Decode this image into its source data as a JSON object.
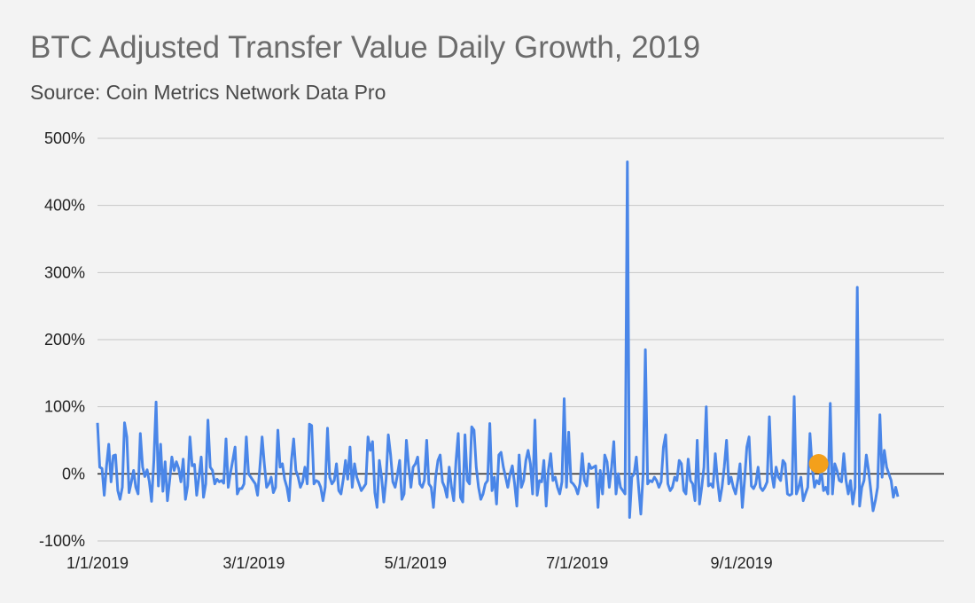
{
  "chart_data": {
    "type": "line",
    "title": "BTC Adjusted Transfer Value Daily Growth, 2019",
    "subtitle": "Source: Coin Metrics Network Data Pro",
    "xlabel": "",
    "ylabel": "",
    "x_start": "2019-01-01",
    "x_end": "2019-10-30",
    "ylim": [
      -100,
      500
    ],
    "y_ticks": [
      -100,
      0,
      100,
      200,
      300,
      400,
      500
    ],
    "y_tick_labels": [
      "-100%",
      "0%",
      "100%",
      "200%",
      "300%",
      "400%",
      "500%"
    ],
    "x_ticks": [
      "2019-01-01",
      "2019-03-01",
      "2019-05-01",
      "2019-07-01",
      "2019-09-01"
    ],
    "x_tick_labels": [
      "1/1/2019",
      "3/1/2019",
      "5/1/2019",
      "7/1/2019",
      "9/1/2019"
    ],
    "grid": true,
    "legend": "none",
    "colors": {
      "line": "#4a86e8",
      "marker": "#f4a01b",
      "grid": "#c6c6c6",
      "zero_line": "#222222"
    },
    "series": [
      {
        "values": [
          76,
          10,
          8,
          -32,
          12,
          44,
          -12,
          27,
          28,
          -25,
          -38,
          -20,
          76,
          55,
          -28,
          -12,
          5,
          -20,
          -30,
          60,
          10,
          -4,
          6,
          -12,
          -41,
          20,
          107,
          -18,
          44,
          -26,
          18,
          -40,
          -10,
          25,
          5,
          18,
          8,
          -12,
          22,
          -38,
          -18,
          55,
          12,
          14,
          -32,
          -4,
          25,
          -35,
          -15,
          80,
          10,
          5,
          -15,
          -8,
          -12,
          -10,
          -14,
          52,
          -20,
          2,
          20,
          40,
          -30,
          -22,
          -22,
          -15,
          55,
          0,
          -5,
          -10,
          -15,
          -32,
          8,
          55,
          15,
          -20,
          -15,
          -5,
          -28,
          -20,
          65,
          10,
          15,
          -8,
          -20,
          -40,
          20,
          52,
          5,
          -5,
          -20,
          -12,
          10,
          -15,
          74,
          72,
          -15,
          -10,
          -12,
          -20,
          -40,
          -20,
          68,
          -5,
          -15,
          -10,
          15,
          -25,
          -30,
          -8,
          20,
          -8,
          40,
          -20,
          15,
          -5,
          -15,
          -25,
          -20,
          -15,
          55,
          35,
          48,
          -28,
          -50,
          20,
          -5,
          -42,
          -8,
          58,
          28,
          -12,
          -20,
          -2,
          20,
          -38,
          -30,
          50,
          12,
          -20,
          10,
          15,
          25,
          -15,
          -20,
          -10,
          50,
          -15,
          -20,
          -50,
          -5,
          20,
          28,
          -12,
          -20,
          -35,
          10,
          -20,
          -40,
          18,
          60,
          -35,
          -42,
          58,
          -10,
          -15,
          70,
          65,
          10,
          -20,
          -38,
          -30,
          -15,
          -10,
          75,
          -25,
          -5,
          -45,
          28,
          32,
          10,
          -5,
          -20,
          0,
          12,
          -15,
          -48,
          28,
          -20,
          -10,
          20,
          35,
          15,
          -30,
          80,
          -32,
          -10,
          -12,
          20,
          -48,
          5,
          30,
          -10,
          -5,
          -20,
          -30,
          -12,
          112,
          -20,
          62,
          -12,
          -15,
          -20,
          -30,
          -15,
          30,
          -10,
          -18,
          15,
          8,
          10,
          12,
          -50,
          5,
          -30,
          28,
          18,
          -20,
          10,
          48,
          -30,
          0,
          -20,
          -25,
          -30,
          465,
          -65,
          -5,
          0,
          25,
          -20,
          -60,
          0,
          185,
          -15,
          -10,
          -12,
          -5,
          -10,
          -20,
          -12,
          40,
          58,
          -15,
          -25,
          -20,
          -5,
          -10,
          20,
          15,
          -25,
          -30,
          22,
          -10,
          -15,
          -40,
          50,
          -45,
          -20,
          10,
          100,
          -18,
          -15,
          -20,
          30,
          -10,
          -40,
          -20,
          10,
          50,
          -15,
          -5,
          -20,
          -30,
          -10,
          15,
          -50,
          -10,
          40,
          55,
          -18,
          -22,
          -15,
          10,
          -20,
          -25,
          -20,
          -12,
          85,
          0,
          -20,
          10,
          -5,
          -10,
          20,
          15,
          -30,
          -32,
          -30,
          115,
          -30,
          -20,
          -5,
          -40,
          -30,
          -20,
          60,
          10,
          -20,
          -10,
          -15,
          5,
          -25,
          -20,
          -30,
          105,
          -30,
          15,
          5,
          -10,
          -12,
          30,
          -10,
          -30,
          -10,
          -45,
          -20,
          278,
          -48,
          -20,
          -10,
          28,
          5,
          -25,
          -55,
          -40,
          -20,
          88,
          -5,
          35,
          10,
          0,
          -10,
          -35,
          -20,
          -34
        ]
      }
    ],
    "marker": {
      "index": 301,
      "value": 15
    }
  }
}
